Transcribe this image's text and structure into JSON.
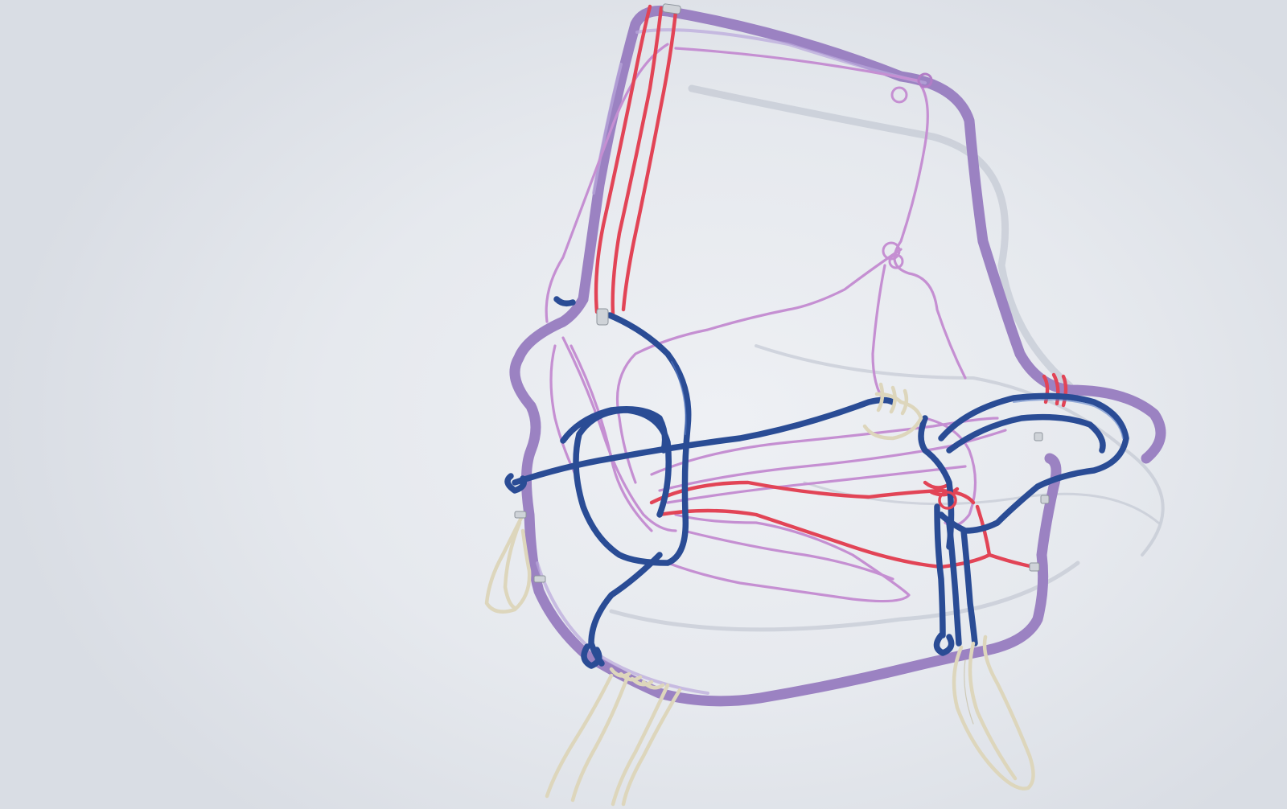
{
  "photo": {
    "subject": "wire-sculpture",
    "colors": {
      "background": "#e4e7ec",
      "purple_wire": "#9b82c2",
      "lilac_wire": "#c58fd2",
      "red_wire": "#e24456",
      "navy_wire": "#2a4c95",
      "cream_wire": "#ddd6bc"
    }
  }
}
